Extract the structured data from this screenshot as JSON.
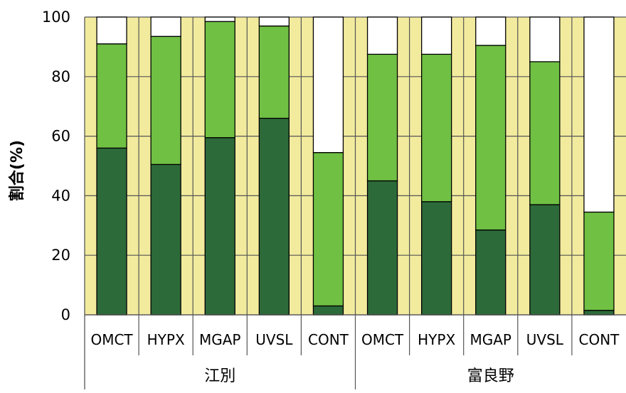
{
  "chart_data": {
    "type": "bar",
    "stacked": true,
    "title": "",
    "xlabel": "",
    "ylabel": "割合(%)",
    "ylim": [
      0,
      100
    ],
    "yticks": [
      0,
      20,
      40,
      60,
      80,
      100
    ],
    "grid": true,
    "groups": [
      {
        "name": "江別",
        "categories": [
          "OMCT",
          "HYPX",
          "MGAP",
          "UVSL",
          "CONT"
        ]
      },
      {
        "name": "富良野",
        "categories": [
          "OMCT",
          "HYPX",
          "MGAP",
          "UVSL",
          "CONT"
        ]
      }
    ],
    "series": [
      {
        "values": [
          56,
          50.5,
          59.5,
          66,
          3,
          45,
          38,
          28.5,
          37,
          1.5
        ]
      },
      {
        "values": [
          35,
          43,
          39,
          31,
          51.5,
          42.5,
          49.5,
          62,
          48,
          33
        ]
      },
      {
        "values": [
          9,
          6.5,
          1.5,
          3,
          45.5,
          12.5,
          12.5,
          9.5,
          15,
          65.5
        ]
      }
    ],
    "colors": {
      "series": [
        "#2d6a3a",
        "#70c044",
        "#ffffff"
      ],
      "background_band": "#f2eb9e",
      "bar_outline": "#000000"
    }
  }
}
